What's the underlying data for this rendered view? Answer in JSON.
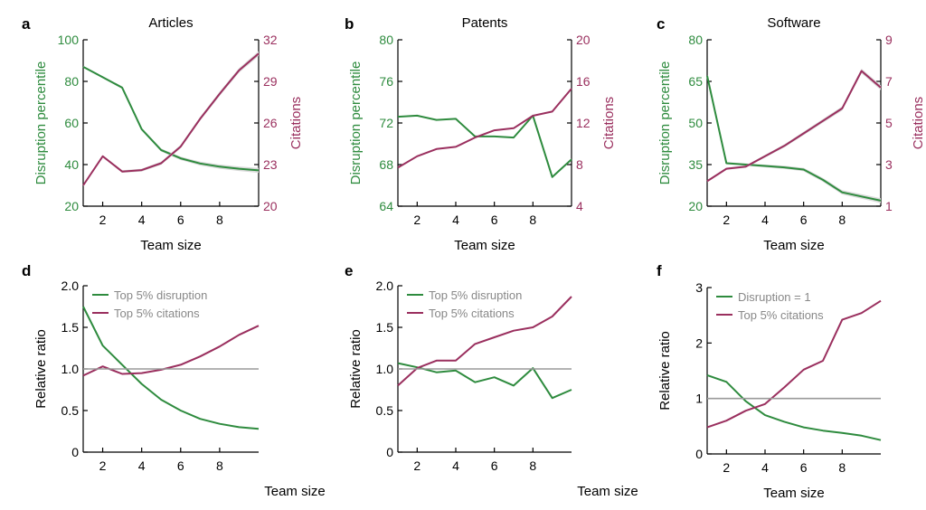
{
  "colors": {
    "green": "#2e8b3e",
    "purple": "#9a2f5e",
    "gray": "#9a9a9a",
    "band": "#d9d9d9",
    "axis": "#000000"
  },
  "chart_data": [
    {
      "id": "a",
      "type": "line",
      "title": "Articles",
      "xlabel": "Team size",
      "ylabel_left": "Disruption percentile",
      "ylabel_right": "Citations",
      "xlim": [
        1,
        10
      ],
      "xticks": [
        2,
        4,
        6,
        8
      ],
      "ylim_left": [
        20,
        100
      ],
      "yticks_left": [
        20,
        40,
        60,
        80,
        100
      ],
      "ylim_right": [
        20,
        32
      ],
      "yticks_right": [
        20,
        23,
        26,
        29,
        32
      ],
      "series": [
        {
          "axis": "left",
          "color": "green",
          "x": [
            1,
            2,
            3,
            4,
            5,
            6,
            7,
            8,
            9,
            10
          ],
          "y": [
            87,
            82,
            77,
            57,
            47,
            43,
            40.5,
            39,
            38,
            37.2
          ]
        },
        {
          "axis": "right",
          "color": "purple",
          "x": [
            1,
            2,
            3,
            4,
            5,
            6,
            7,
            8,
            9,
            10
          ],
          "y": [
            21.5,
            23.6,
            22.5,
            22.6,
            23.1,
            24.3,
            26.3,
            28.1,
            29.8,
            31.0
          ]
        }
      ]
    },
    {
      "id": "b",
      "type": "line",
      "title": "Patents",
      "xlabel": "Team size",
      "ylabel_left": "Disruption percentile",
      "ylabel_right": "Citations",
      "xlim": [
        1,
        10
      ],
      "xticks": [
        2,
        4,
        6,
        8
      ],
      "ylim_left": [
        64,
        80
      ],
      "yticks_left": [
        64,
        68,
        72,
        76,
        80
      ],
      "ylim_right": [
        4,
        20
      ],
      "yticks_right": [
        4,
        8,
        12,
        16,
        20
      ],
      "series": [
        {
          "axis": "left",
          "color": "green",
          "x": [
            1,
            2,
            3,
            4,
            5,
            6,
            7,
            8,
            9,
            10
          ],
          "y": [
            72.6,
            72.7,
            72.3,
            72.4,
            70.7,
            70.7,
            70.6,
            72.7,
            66.8,
            68.5
          ]
        },
        {
          "axis": "right",
          "color": "purple",
          "x": [
            1,
            2,
            3,
            4,
            5,
            6,
            7,
            8,
            9,
            10
          ],
          "y": [
            7.7,
            8.8,
            9.5,
            9.7,
            10.6,
            11.3,
            11.5,
            12.7,
            13.1,
            15.3
          ]
        }
      ]
    },
    {
      "id": "c",
      "type": "line",
      "title": "Software",
      "xlabel": "Team size",
      "ylabel_left": "Disruption percentile",
      "ylabel_right": "Citations",
      "xlim": [
        1,
        10
      ],
      "xticks": [
        2,
        4,
        6,
        8
      ],
      "ylim_left": [
        20,
        80
      ],
      "yticks_left": [
        20,
        35,
        50,
        65,
        80
      ],
      "ylim_right": [
        1,
        9
      ],
      "yticks_right": [
        1,
        3,
        5,
        7,
        9
      ],
      "series": [
        {
          "axis": "left",
          "color": "green",
          "x": [
            1,
            2,
            3,
            4,
            5,
            6,
            7,
            8,
            9,
            10
          ],
          "y": [
            67,
            35.5,
            35,
            34.5,
            34,
            33.2,
            29.5,
            25,
            23.5,
            22
          ]
        },
        {
          "axis": "right",
          "color": "purple",
          "x": [
            1,
            2,
            3,
            4,
            5,
            6,
            7,
            8,
            9,
            10
          ],
          "y": [
            2.2,
            2.8,
            2.9,
            3.4,
            3.9,
            4.5,
            5.1,
            5.7,
            7.5,
            6.7
          ]
        }
      ]
    },
    {
      "id": "d",
      "type": "line",
      "title": "",
      "xlabel": "Team size",
      "ylabel_left": "Relative ratio",
      "xlim": [
        1,
        10
      ],
      "xticks": [
        2,
        4,
        6,
        8
      ],
      "ylim_left": [
        0,
        2
      ],
      "yticks_left": [
        "0",
        "0.5",
        "1.0",
        "1.5",
        "2.0"
      ],
      "legend": [
        "Top 5% disruption",
        "Top 5% citations"
      ],
      "series": [
        {
          "name": "Top 5% disruption",
          "axis": "left",
          "color": "green",
          "x": [
            1,
            2,
            3,
            4,
            5,
            6,
            7,
            8,
            9,
            10
          ],
          "y": [
            1.75,
            1.28,
            1.05,
            0.82,
            0.63,
            0.5,
            0.4,
            0.34,
            0.3,
            0.28
          ]
        },
        {
          "name": "Top 5% citations",
          "axis": "left",
          "color": "purple",
          "x": [
            1,
            2,
            3,
            4,
            5,
            6,
            7,
            8,
            9,
            10
          ],
          "y": [
            0.92,
            1.03,
            0.94,
            0.95,
            0.99,
            1.05,
            1.15,
            1.27,
            1.41,
            1.52
          ]
        },
        {
          "axis": "left",
          "color": "gray",
          "x": [
            1,
            10
          ],
          "y": [
            1,
            1
          ]
        }
      ]
    },
    {
      "id": "e",
      "type": "line",
      "title": "",
      "xlabel": "Team size",
      "ylabel_left": "Relative ratio",
      "xlim": [
        1,
        10
      ],
      "xticks": [
        2,
        4,
        6,
        8
      ],
      "ylim_left": [
        0,
        2
      ],
      "yticks_left": [
        "0",
        "0.5",
        "1.0",
        "1.5",
        "2.0"
      ],
      "legend": [
        "Top 5% disruption",
        "Top 5% citations"
      ],
      "series": [
        {
          "name": "Top 5% disruption",
          "axis": "left",
          "color": "green",
          "x": [
            1,
            2,
            3,
            4,
            5,
            6,
            7,
            8,
            9,
            10
          ],
          "y": [
            1.07,
            1.02,
            0.96,
            0.98,
            0.84,
            0.9,
            0.8,
            1.01,
            0.65,
            0.75
          ]
        },
        {
          "name": "Top 5% citations",
          "axis": "left",
          "color": "purple",
          "x": [
            1,
            2,
            3,
            4,
            5,
            6,
            7,
            8,
            9,
            10
          ],
          "y": [
            0.8,
            1.01,
            1.1,
            1.1,
            1.3,
            1.38,
            1.46,
            1.5,
            1.63,
            1.87
          ]
        },
        {
          "axis": "left",
          "color": "gray",
          "x": [
            1,
            10
          ],
          "y": [
            1,
            1
          ]
        }
      ]
    },
    {
      "id": "f",
      "type": "line",
      "title": "",
      "xlabel": "Team size",
      "ylabel_left": "Relative ratio",
      "xlim": [
        1,
        10
      ],
      "xticks": [
        2,
        4,
        6,
        8
      ],
      "ylim_left": [
        0,
        3
      ],
      "yticks_left": [
        "0",
        "1",
        "2",
        "3"
      ],
      "legend": [
        "Disruption = 1",
        "Top 5% citations"
      ],
      "series": [
        {
          "name": "Disruption = 1",
          "axis": "left",
          "color": "green",
          "x": [
            1,
            2,
            3,
            4,
            5,
            6,
            7,
            8,
            9,
            10
          ],
          "y": [
            1.42,
            1.3,
            0.95,
            0.7,
            0.58,
            0.48,
            0.42,
            0.38,
            0.33,
            0.25
          ]
        },
        {
          "name": "Top 5% citations",
          "axis": "left",
          "color": "purple",
          "x": [
            1,
            2,
            3,
            4,
            5,
            6,
            7,
            8,
            9,
            10
          ],
          "y": [
            0.48,
            0.6,
            0.78,
            0.9,
            1.2,
            1.52,
            1.68,
            2.42,
            2.54,
            2.76
          ]
        },
        {
          "axis": "left",
          "color": "gray",
          "x": [
            1,
            10
          ],
          "y": [
            1,
            1
          ]
        }
      ]
    }
  ]
}
